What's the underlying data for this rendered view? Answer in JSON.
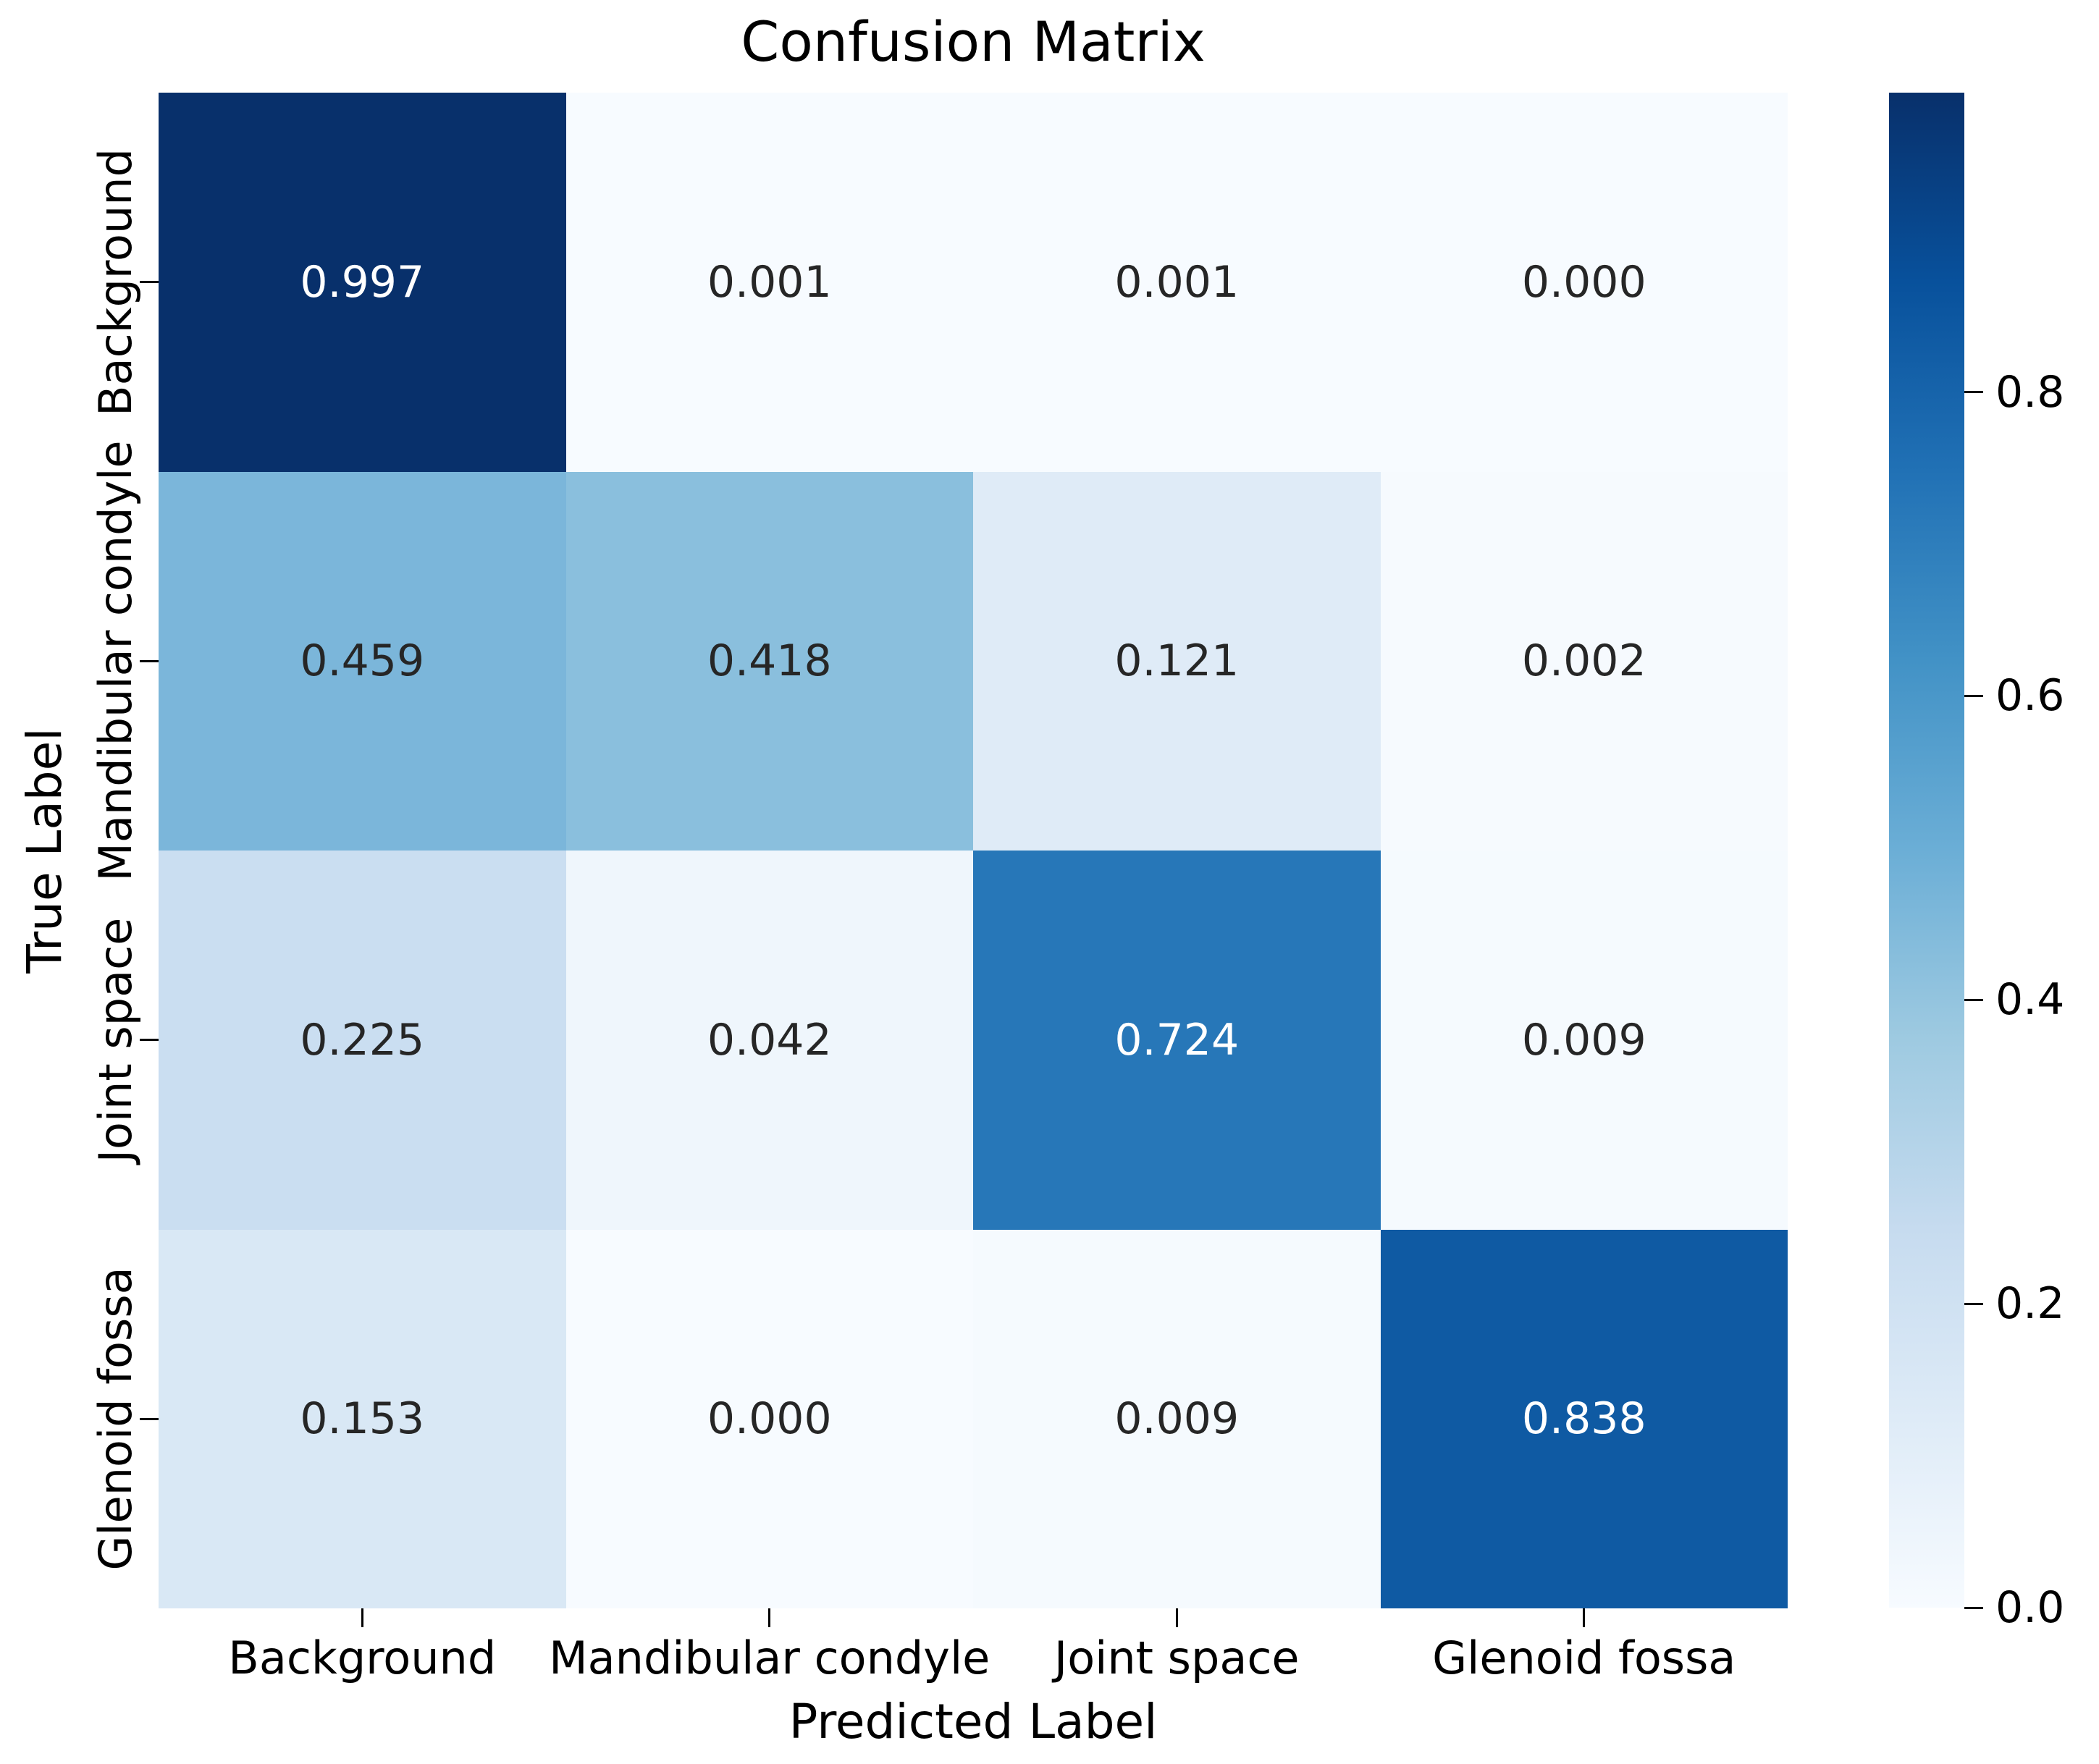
{
  "chart_data": {
    "type": "heatmap",
    "title": "Confusion Matrix",
    "xlabel": "Predicted Label",
    "ylabel": "True Label",
    "categories": [
      "Background",
      "Mandibular condyle",
      "Joint space",
      "Glenoid fossa"
    ],
    "matrix": [
      [
        0.997,
        0.001,
        0.001,
        0.0
      ],
      [
        0.459,
        0.418,
        0.121,
        0.002
      ],
      [
        0.225,
        0.042,
        0.724,
        0.009
      ],
      [
        0.153,
        0.0,
        0.009,
        0.838
      ]
    ],
    "labels": [
      [
        "0.997",
        "0.001",
        "0.001",
        "0.000"
      ],
      [
        "0.459",
        "0.418",
        "0.121",
        "0.002"
      ],
      [
        "0.225",
        "0.042",
        "0.724",
        "0.009"
      ],
      [
        "0.153",
        "0.000",
        "0.009",
        "0.838"
      ]
    ],
    "cell_colors": [
      [
        "#08306b",
        "#f7fbff",
        "#f7fbff",
        "#f7fbff"
      ],
      [
        "#7bb6da",
        "#8abfdd",
        "#dfebf7",
        "#f6fafe"
      ],
      [
        "#cadef1",
        "#eff6fc",
        "#2777b8",
        "#f5fafe"
      ],
      [
        "#d9e8f5",
        "#f7fbff",
        "#f5fafe",
        "#0f5aa3"
      ]
    ],
    "annot_colors": [
      [
        "#ffffff",
        "#262626",
        "#262626",
        "#262626"
      ],
      [
        "#262626",
        "#262626",
        "#262626",
        "#262626"
      ],
      [
        "#262626",
        "#262626",
        "#ffffff",
        "#262626"
      ],
      [
        "#262626",
        "#262626",
        "#262626",
        "#ffffff"
      ]
    ],
    "colormap": "Blues",
    "vmin": 0.0,
    "vmax": 0.997,
    "colorbar_ticks": [
      {
        "label": "0.8",
        "value": 0.8
      },
      {
        "label": "0.6",
        "value": 0.6
      },
      {
        "label": "0.4",
        "value": 0.4
      },
      {
        "label": "0.2",
        "value": 0.2
      },
      {
        "label": "0.0",
        "value": 0.0
      }
    ],
    "legend_position": "right-colorbar",
    "grid": false
  }
}
